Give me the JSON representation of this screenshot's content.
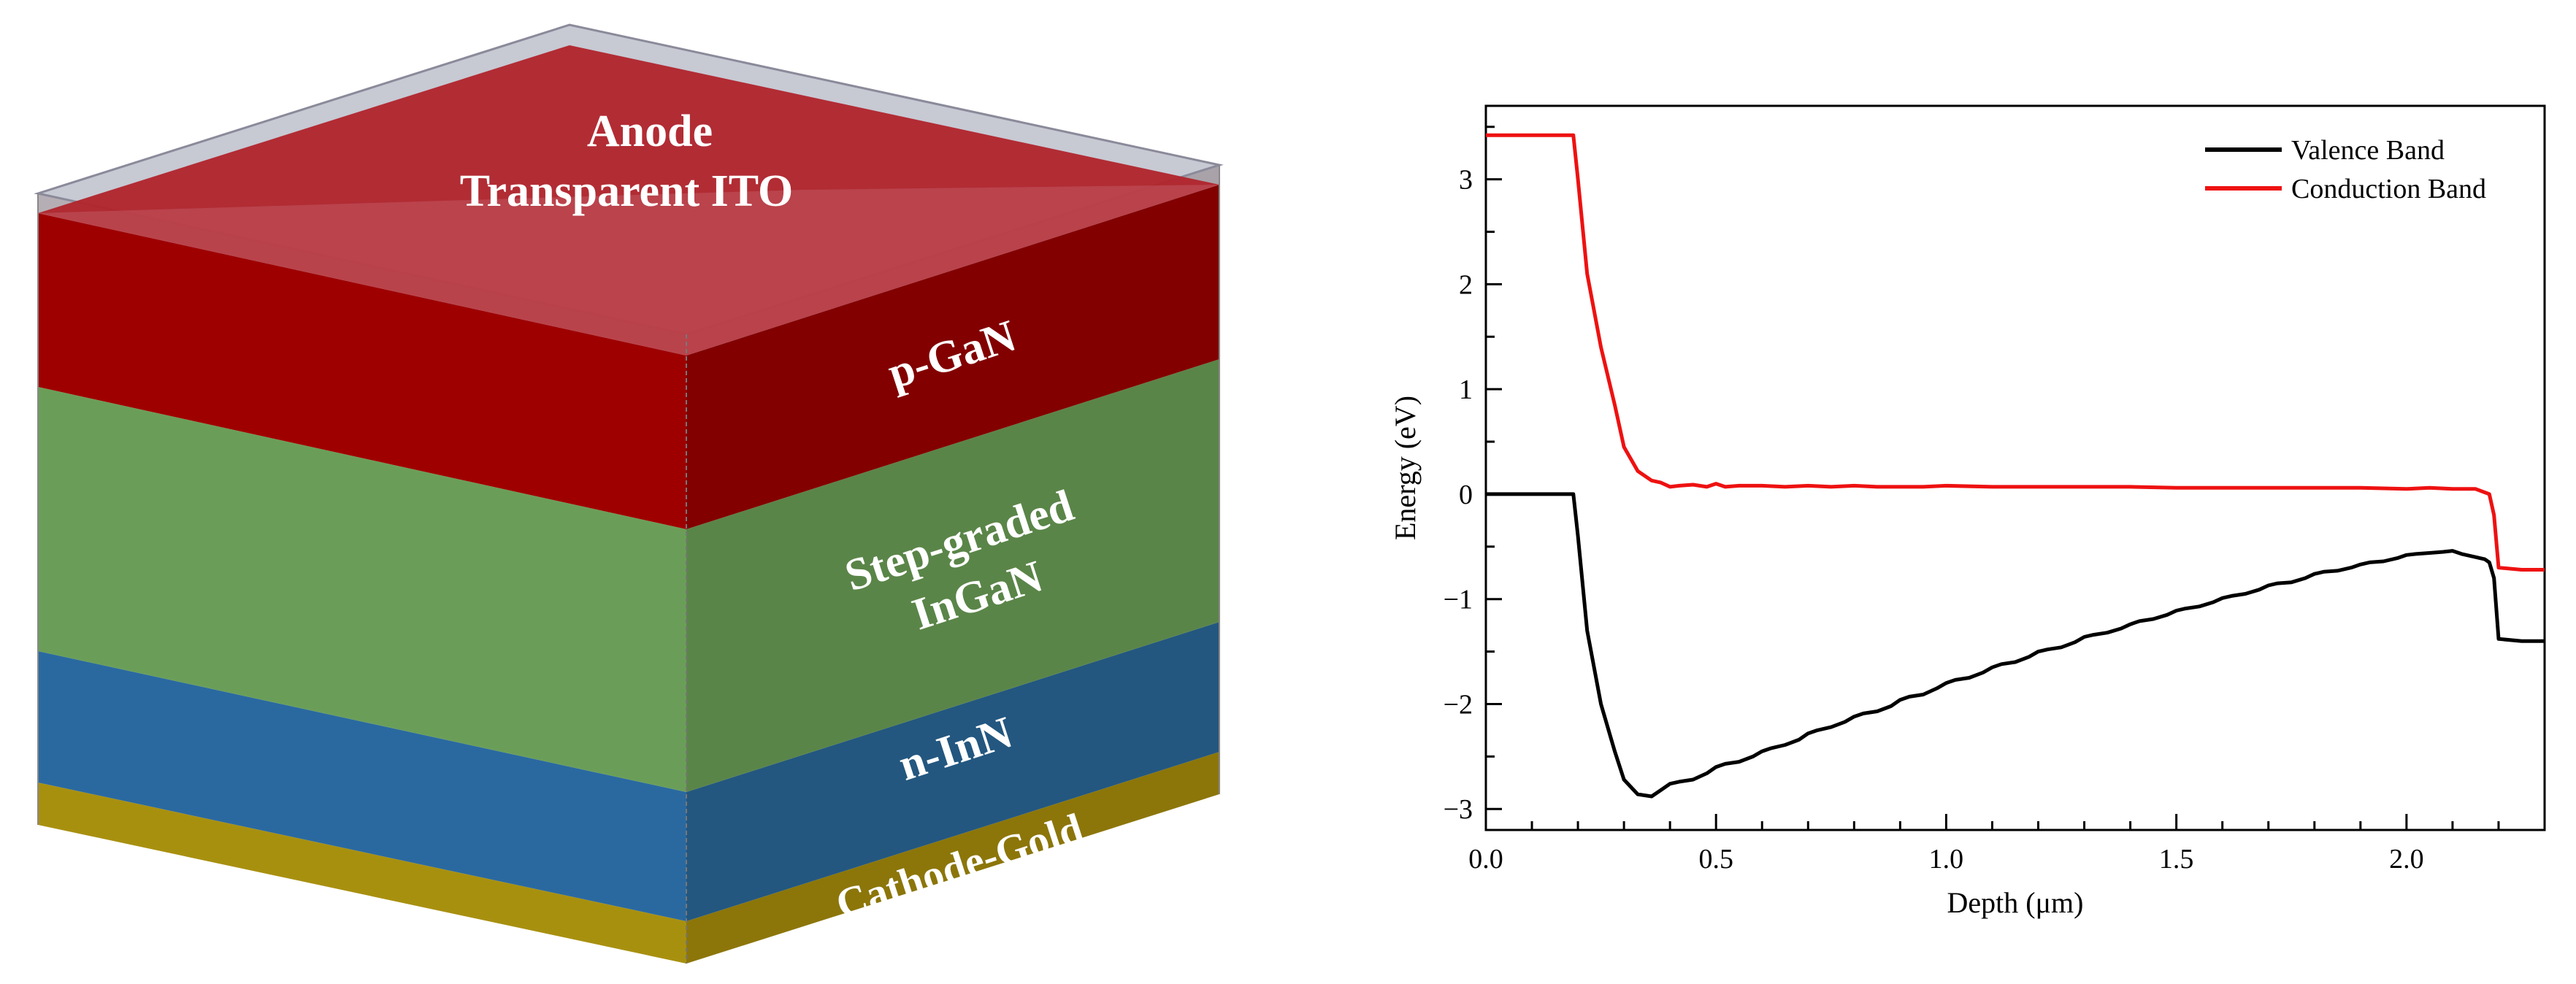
{
  "device": {
    "layers": [
      {
        "key": "ito",
        "label_lines": [
          "Anode",
          "Transparent ITO"
        ],
        "color": "#b1242b"
      },
      {
        "key": "pgan",
        "label_lines": [
          "p-GaN"
        ],
        "color": "#9e0000"
      },
      {
        "key": "ingan",
        "label_lines": [
          "Step-graded",
          "InGaN"
        ],
        "color": "#6a9e58"
      },
      {
        "key": "ninn",
        "label_lines": [
          "n-InN"
        ],
        "color": "#2a69a0"
      },
      {
        "key": "gold",
        "label_lines": [
          "Cathode-Gold"
        ],
        "color": "#a8900f"
      }
    ]
  },
  "chart_data": {
    "type": "line",
    "xlabel": "Depth (μm)",
    "ylabel": "Energy (eV)",
    "xlim": [
      0,
      2.3
    ],
    "ylim": [
      -3.2,
      3.7
    ],
    "x_ticks": [
      0.0,
      0.5,
      1.0,
      1.5,
      2.0
    ],
    "x_tick_labels": [
      "0.0",
      "0.5",
      "1.0",
      "1.5",
      "2.0"
    ],
    "y_ticks": [
      3,
      2,
      1,
      0,
      -1,
      -2,
      -3
    ],
    "y_tick_labels": [
      "3",
      "2",
      "1",
      "0",
      "−1",
      "−2",
      "−3"
    ],
    "legend_position": "top-right",
    "series": [
      {
        "name": "Valence Band",
        "color": "#000000",
        "x": [
          0,
          0.19,
          0.2,
          0.22,
          0.25,
          0.28,
          0.3,
          0.33,
          0.36,
          0.38,
          0.4,
          0.42,
          0.45,
          0.48,
          0.5,
          0.52,
          0.55,
          0.58,
          0.6,
          0.62,
          0.65,
          0.68,
          0.7,
          0.72,
          0.75,
          0.78,
          0.8,
          0.82,
          0.85,
          0.88,
          0.9,
          0.92,
          0.95,
          0.98,
          1.0,
          1.02,
          1.05,
          1.08,
          1.1,
          1.12,
          1.15,
          1.18,
          1.2,
          1.22,
          1.25,
          1.28,
          1.3,
          1.32,
          1.35,
          1.38,
          1.4,
          1.42,
          1.45,
          1.48,
          1.5,
          1.52,
          1.55,
          1.58,
          1.6,
          1.62,
          1.65,
          1.68,
          1.7,
          1.72,
          1.75,
          1.78,
          1.8,
          1.82,
          1.85,
          1.88,
          1.9,
          1.92,
          1.95,
          1.98,
          2.0,
          2.02,
          2.05,
          2.08,
          2.1,
          2.12,
          2.15,
          2.17,
          2.18,
          2.19,
          2.2,
          2.25,
          2.3
        ],
        "y": [
          0,
          0,
          -0.4,
          -1.3,
          -2.0,
          -2.45,
          -2.72,
          -2.86,
          -2.88,
          -2.82,
          -2.76,
          -2.74,
          -2.72,
          -2.66,
          -2.6,
          -2.57,
          -2.55,
          -2.5,
          -2.45,
          -2.42,
          -2.39,
          -2.34,
          -2.28,
          -2.25,
          -2.22,
          -2.17,
          -2.12,
          -2.09,
          -2.07,
          -2.02,
          -1.96,
          -1.93,
          -1.91,
          -1.85,
          -1.8,
          -1.77,
          -1.75,
          -1.7,
          -1.65,
          -1.62,
          -1.6,
          -1.55,
          -1.5,
          -1.48,
          -1.46,
          -1.41,
          -1.36,
          -1.34,
          -1.32,
          -1.28,
          -1.24,
          -1.21,
          -1.19,
          -1.15,
          -1.11,
          -1.09,
          -1.07,
          -1.03,
          -0.99,
          -0.97,
          -0.95,
          -0.91,
          -0.87,
          -0.85,
          -0.84,
          -0.8,
          -0.76,
          -0.74,
          -0.73,
          -0.7,
          -0.67,
          -0.65,
          -0.64,
          -0.61,
          -0.58,
          -0.57,
          -0.56,
          -0.55,
          -0.54,
          -0.57,
          -0.6,
          -0.62,
          -0.65,
          -0.8,
          -1.38,
          -1.4,
          -1.4
        ]
      },
      {
        "name": "Conduction Band",
        "color": "#ee1111",
        "x": [
          0,
          0.19,
          0.2,
          0.22,
          0.25,
          0.28,
          0.3,
          0.33,
          0.36,
          0.38,
          0.4,
          0.42,
          0.45,
          0.48,
          0.5,
          0.52,
          0.55,
          0.6,
          0.65,
          0.7,
          0.75,
          0.8,
          0.85,
          0.9,
          0.95,
          1.0,
          1.1,
          1.2,
          1.3,
          1.4,
          1.5,
          1.6,
          1.7,
          1.8,
          1.9,
          2.0,
          2.05,
          2.1,
          2.15,
          2.18,
          2.19,
          2.2,
          2.25,
          2.3
        ],
        "y": [
          3.42,
          3.42,
          3.0,
          2.1,
          1.4,
          0.85,
          0.45,
          0.22,
          0.13,
          0.11,
          0.07,
          0.08,
          0.09,
          0.07,
          0.1,
          0.07,
          0.08,
          0.08,
          0.07,
          0.08,
          0.07,
          0.08,
          0.07,
          0.07,
          0.07,
          0.08,
          0.07,
          0.07,
          0.07,
          0.07,
          0.06,
          0.06,
          0.06,
          0.06,
          0.06,
          0.05,
          0.06,
          0.05,
          0.05,
          0.0,
          -0.2,
          -0.7,
          -0.72,
          -0.72
        ]
      }
    ]
  }
}
